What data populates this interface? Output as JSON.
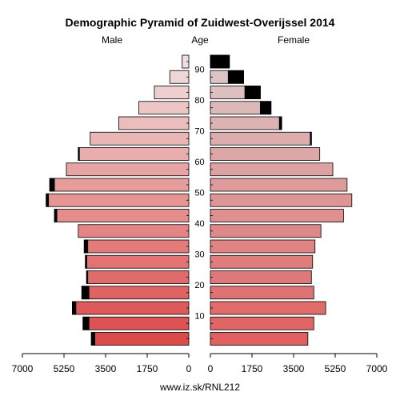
{
  "chart_data": {
    "type": "bar",
    "title": "Demographic Pyramid of Zuidwest-Overijssel 2014",
    "headers": {
      "male": "Male",
      "age": "Age",
      "female": "Female"
    },
    "footer": "www.iz.sk/RNL212",
    "xlim": [
      0,
      7000
    ],
    "x_ticks_left": [
      "7000",
      "5250",
      "3500",
      "1750",
      "0"
    ],
    "x_ticks_right": [
      "0",
      "1750",
      "3500",
      "5250",
      "7000"
    ],
    "age_ticks": [
      "10",
      "20",
      "30",
      "40",
      "50",
      "60",
      "70",
      "80",
      "90"
    ],
    "age_groups": [
      "0-4",
      "5-9",
      "10-14",
      "15-19",
      "20-24",
      "25-29",
      "30-34",
      "35-39",
      "40-44",
      "45-49",
      "50-54",
      "55-59",
      "60-64",
      "65-69",
      "70-74",
      "75-79",
      "80-84",
      "85-89",
      "90+"
    ],
    "series": [
      {
        "name": "Male",
        "values": [
          4100,
          4450,
          4900,
          4500,
          4300,
          4350,
          4400,
          4650,
          5650,
          6000,
          5850,
          5150,
          4650,
          4150,
          2950,
          2100,
          1450,
          800,
          280
        ]
      },
      {
        "name": "Female",
        "values": [
          4100,
          4350,
          4850,
          4350,
          4250,
          4300,
          4400,
          4650,
          5600,
          5950,
          5750,
          5150,
          4600,
          4250,
          3000,
          2550,
          2100,
          1400,
          800
        ]
      }
    ],
    "dark_segments": {
      "male": [
        150,
        250,
        150,
        300,
        50,
        60,
        150,
        0,
        100,
        100,
        200,
        0,
        50,
        0,
        0,
        0,
        0,
        0,
        0
      ],
      "female": [
        0,
        0,
        0,
        0,
        0,
        0,
        0,
        0,
        0,
        0,
        0,
        0,
        0,
        50,
        100,
        450,
        650,
        650,
        800
      ]
    },
    "colors": {
      "dark": "#000000",
      "stroke": "#000000",
      "male_bottom": "#dc4a4a",
      "male_top": "#f0dede",
      "female_bottom": "#e06060",
      "female_top": "#dccaca"
    }
  }
}
